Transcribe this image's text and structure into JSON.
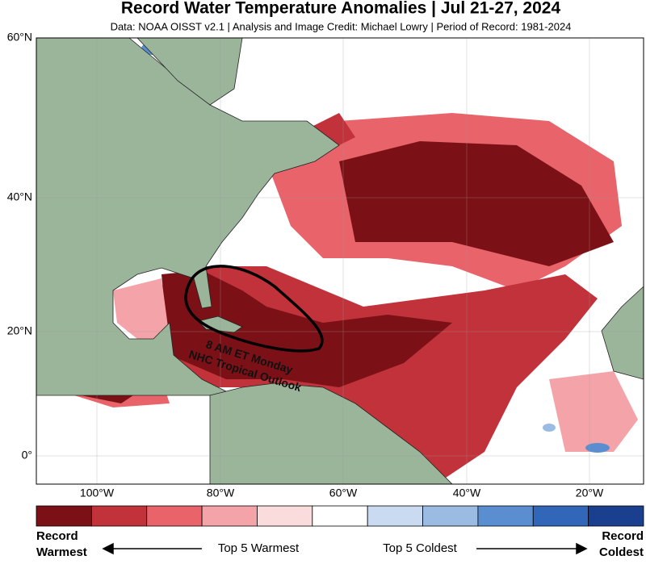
{
  "title": "Record Water Temperature Anomalies | Jul 21-27, 2024",
  "subtitle": "Data: NOAA OISST v2.1 | Analysis and Image Credit: Michael Lowry | Period of Record: 1981-2024",
  "map": {
    "lat_labels": [
      "60°N",
      "40°N",
      "20°N",
      "0°"
    ],
    "lon_labels": [
      "100°W",
      "80°W",
      "60°W",
      "40°W",
      "20°W"
    ],
    "annotation": [
      "8 AM ET Monday",
      "NHC Tropical Outlook"
    ]
  },
  "legend": {
    "colors": [
      "#7b1116",
      "#c1323a",
      "#e8636a",
      "#f4a4a8",
      "#fbdcdd",
      "#ffffff",
      "#c9daf1",
      "#9bbbe3",
      "#5b8ed0",
      "#3166b8",
      "#1a3f8f"
    ],
    "left": [
      "Record",
      "Warmest"
    ],
    "warm": "Top 5 Warmest",
    "cold": "Top 5 Coldest",
    "right": [
      "Record",
      "Coldest"
    ]
  }
}
